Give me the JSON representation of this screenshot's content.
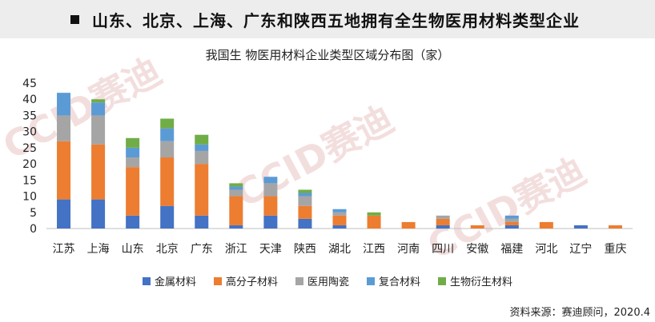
{
  "banner": {
    "title": "山东、北京、上海、广东和陕西五地拥有全生物医用材料类型企业"
  },
  "source_text": "资料来源：赛迪顾问，2020.4",
  "watermark": "CCID赛迪",
  "chart_data": {
    "type": "bar",
    "stacked": true,
    "title": "我国生 物医用材料企业类型区域分布图（家）",
    "xlabel": "",
    "ylabel": "",
    "ylim": [
      0,
      45
    ],
    "yticks": [
      0,
      5,
      10,
      15,
      20,
      25,
      30,
      35,
      40,
      45
    ],
    "grid": false,
    "legend_position": "bottom",
    "categories": [
      "江苏",
      "上海",
      "山东",
      "北京",
      "广东",
      "浙江",
      "天津",
      "陕西",
      "湖北",
      "江西",
      "河南",
      "四川",
      "安徽",
      "福建",
      "河北",
      "辽宁",
      "重庆"
    ],
    "series": [
      {
        "name": "金属材料",
        "color": "#4472c4",
        "values": [
          9,
          9,
          4,
          7,
          4,
          1,
          4,
          3,
          1,
          0,
          0,
          1,
          0,
          1,
          0,
          1,
          0
        ]
      },
      {
        "name": "高分子材料",
        "color": "#ed7d31",
        "values": [
          18,
          17,
          15,
          15,
          16,
          9,
          6,
          4,
          3,
          4,
          2,
          2,
          1,
          1,
          2,
          0,
          1
        ]
      },
      {
        "name": "医用陶瓷",
        "color": "#a5a5a5",
        "values": [
          8,
          9,
          3,
          5,
          4,
          2,
          4,
          3,
          1,
          0,
          0,
          1,
          0,
          1,
          0,
          0,
          0
        ]
      },
      {
        "name": "复合材料",
        "color": "#5b9bd5",
        "values": [
          7,
          4,
          3,
          4,
          2,
          1,
          2,
          1,
          1,
          0,
          0,
          0,
          0,
          1,
          0,
          0,
          0
        ]
      },
      {
        "name": "生物衍生材料",
        "color": "#70ad47",
        "values": [
          0,
          1,
          3,
          3,
          3,
          1,
          0,
          1,
          0,
          1,
          0,
          0,
          0,
          0,
          0,
          0,
          0
        ]
      }
    ]
  }
}
